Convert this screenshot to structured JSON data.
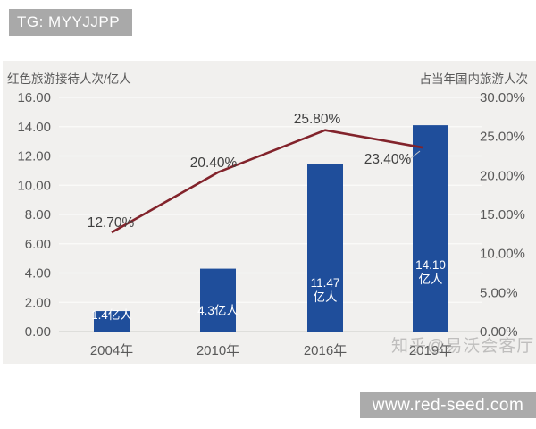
{
  "header": {
    "badge": "TG: MYYJJPP"
  },
  "watermark": {
    "author": "知乎@易沃会客厅",
    "site": "www.red-seed.com"
  },
  "colors": {
    "bar": "#1f4e9b",
    "line": "#82232b",
    "chart_bg": "#f1f0ee",
    "badge_bg": "#a9a9a9",
    "footer_bg": "#ababab",
    "tick_text": "#595959",
    "data_label": "#3f3f3f",
    "bar_label": "#ffffff",
    "grid": "#fbfbfa",
    "axis_line": "#d2d2d0",
    "leader_line": "#c9c9c9"
  },
  "chart_data": {
    "type": "bar",
    "subtype": "bar-with-line",
    "categories": [
      "2004年",
      "2010年",
      "2016年",
      "2019年"
    ],
    "series": [
      {
        "name": "红色旅游接待人次/亿人",
        "type": "bar",
        "axis": "left",
        "values": [
          1.4,
          4.3,
          11.47,
          14.1
        ],
        "labels": [
          [
            "1.4亿人"
          ],
          [
            "4.3亿人"
          ],
          [
            "11.47",
            "亿人"
          ],
          [
            "14.10",
            "亿人"
          ]
        ],
        "color": "#1f4e9b"
      },
      {
        "name": "占当年国内旅游人次",
        "type": "line",
        "axis": "right",
        "values": [
          12.7,
          20.4,
          25.8,
          23.4
        ],
        "labels": [
          "12.70%",
          "20.40%",
          "25.80%",
          "23.40%"
        ],
        "color": "#82232b"
      }
    ],
    "left_axis": {
      "title": "红色旅游接待人次/亿人",
      "min": 0,
      "max": 16,
      "ticks": [
        "16.00",
        "14.00",
        "12.00",
        "10.00",
        "8.00",
        "6.00",
        "4.00",
        "2.00",
        "0.00"
      ]
    },
    "right_axis": {
      "title": "占当年国内旅游人次",
      "min": 0,
      "max": 30,
      "ticks": [
        "30.00%",
        "25.00%",
        "20.00%",
        "15.00%",
        "10.00%",
        "5.00%",
        "0.00%"
      ]
    },
    "grid": true,
    "legend": "none"
  }
}
